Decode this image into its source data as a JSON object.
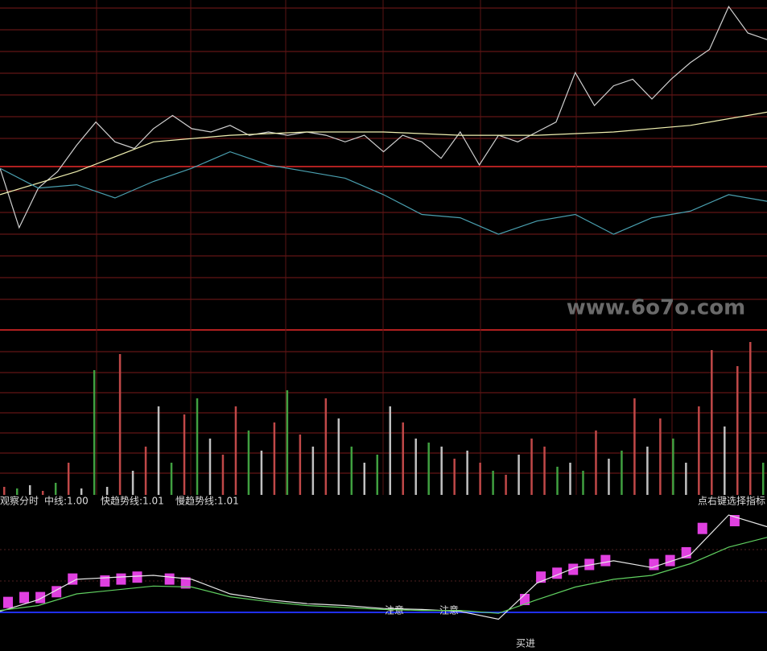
{
  "header": {
    "indicator": "观察分时",
    "mid": "中线:1.00",
    "fast": "快趋势线:1.01",
    "slow": "慢趋势线:1.01",
    "hint": "点右键选择指标"
  },
  "watermark": "www.6o7o.com",
  "annotations": [
    "注意",
    "注意",
    "买进"
  ],
  "chart_data": [
    {
      "type": "line",
      "ylim": [
        0,
        100
      ],
      "series": [
        {
          "color": "#d0d0d0",
          "values": [
            49,
            31,
            43,
            48,
            56,
            63,
            57,
            55,
            61,
            65,
            61,
            60,
            62,
            59,
            60,
            59,
            60,
            59,
            57,
            59,
            54,
            59,
            57,
            52,
            60,
            50,
            59,
            57,
            60,
            63,
            78,
            68,
            74,
            76,
            70,
            76,
            81,
            85,
            98,
            90,
            88
          ]
        },
        {
          "color": "#f0f0b0",
          "values": [
            41,
            48,
            57,
            59,
            60,
            60,
            59,
            59,
            60,
            62,
            66
          ]
        },
        {
          "color": "#4aa0b0",
          "values": [
            49,
            43,
            44,
            40,
            45,
            49,
            54,
            50,
            48,
            46,
            41,
            35,
            34,
            29,
            33,
            35,
            29,
            34,
            36,
            41,
            39
          ]
        }
      ]
    },
    {
      "type": "bar",
      "ylim": [
        0,
        200
      ],
      "values": [
        10,
        8,
        12,
        5,
        15,
        40,
        8,
        155,
        10,
        175,
        30,
        60,
        110,
        40,
        100,
        120,
        70,
        50,
        110,
        80,
        55,
        90,
        130,
        75,
        60,
        120,
        95,
        60,
        40,
        50,
        110,
        90,
        70,
        65,
        60,
        45,
        55,
        40,
        30,
        25,
        50,
        70,
        60,
        35,
        40,
        30,
        80,
        45,
        55,
        120,
        60,
        95,
        70,
        40,
        110,
        180,
        85,
        160,
        190,
        40
      ],
      "colors": [
        "#c04848",
        "#40a040",
        "#c0c0c0",
        "#c04848",
        "#40a040",
        "#c04848",
        "#c0c0c0",
        "#40a040",
        "#c0c0c0",
        "#c04848",
        "#c0c0c0",
        "#c04848",
        "#c0c0c0",
        "#40a040",
        "#c04848",
        "#40a040",
        "#c0c0c0",
        "#c04848",
        "#c04848",
        "#40a040",
        "#c0c0c0",
        "#c04848",
        "#40a040",
        "#c04848",
        "#c0c0c0",
        "#c04848",
        "#c0c0c0",
        "#40a040",
        "#c0c0c0",
        "#40a040",
        "#c0c0c0",
        "#c04848",
        "#c0c0c0",
        "#40a040",
        "#c0c0c0",
        "#c04848",
        "#c0c0c0",
        "#c04848",
        "#40a040",
        "#c04848",
        "#c0c0c0",
        "#c04848",
        "#c04848",
        "#40a040",
        "#c0c0c0",
        "#40a040",
        "#c04848",
        "#c0c0c0",
        "#40a040",
        "#c04848",
        "#c0c0c0",
        "#c04848",
        "#40a040",
        "#c0c0c0",
        "#c04848",
        "#c04848",
        "#c0c0c0",
        "#c04848",
        "#c04848",
        "#40a040"
      ]
    },
    {
      "type": "line",
      "ylim": [
        0,
        100
      ],
      "series": [
        {
          "color": "#e8e8e8",
          "values": [
            1,
            13,
            34,
            36,
            38,
            34,
            19,
            13,
            9,
            7,
            4,
            3,
            1,
            -7,
            30,
            46,
            53,
            46,
            59,
            100,
            88
          ]
        },
        {
          "color": "#60d060",
          "values": [
            2,
            7,
            19,
            23,
            27,
            26,
            16,
            11,
            7,
            5,
            3,
            2,
            2,
            -1,
            13,
            26,
            34,
            38,
            50,
            67,
            77
          ]
        }
      ],
      "bars": {
        "color": "#e040e0",
        "values": [
          16,
          21,
          21,
          27,
          40,
          null,
          38,
          40,
          42,
          null,
          40,
          36,
          null,
          null,
          null,
          null,
          null,
          null,
          null,
          null,
          null,
          null,
          null,
          null,
          null,
          null,
          null,
          null,
          null,
          null,
          null,
          null,
          19,
          42,
          46,
          50,
          55,
          59,
          null,
          null,
          55,
          59,
          67,
          92,
          null,
          100,
          null,
          null
        ]
      }
    }
  ]
}
